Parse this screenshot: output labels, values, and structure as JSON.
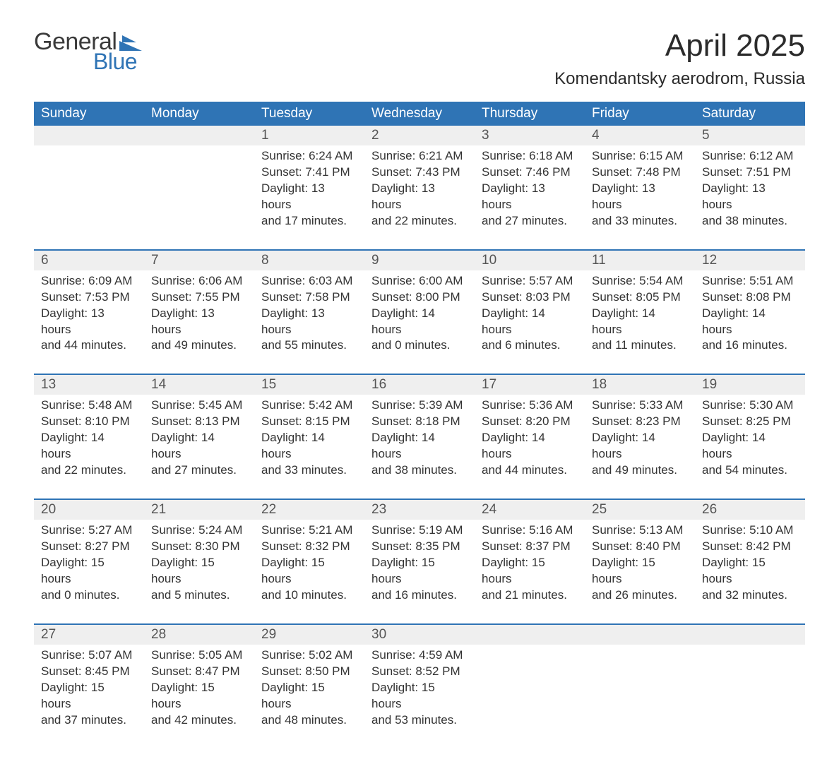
{
  "logo": {
    "general": "General",
    "blue": "Blue",
    "accent_color": "#2f74b5"
  },
  "title": "April 2025",
  "location": "Komendantsky aerodrom, Russia",
  "weekdays": [
    "Sunday",
    "Monday",
    "Tuesday",
    "Wednesday",
    "Thursday",
    "Friday",
    "Saturday"
  ],
  "colors": {
    "header_bg": "#2f74b5",
    "header_text": "#ffffff",
    "daynum_bg": "#efefef",
    "row_divider": "#2f74b5",
    "text": "#333333",
    "background": "#ffffff"
  },
  "typography": {
    "title_fontsize": 44,
    "location_fontsize": 24,
    "weekday_fontsize": 19,
    "daynum_fontsize": 19,
    "body_fontsize": 17,
    "font_family": "Arial"
  },
  "weeks": [
    [
      null,
      null,
      {
        "day": "1",
        "sunrise": "Sunrise: 6:24 AM",
        "sunset": "Sunset: 7:41 PM",
        "daylight1": "Daylight: 13 hours",
        "daylight2": "and 17 minutes."
      },
      {
        "day": "2",
        "sunrise": "Sunrise: 6:21 AM",
        "sunset": "Sunset: 7:43 PM",
        "daylight1": "Daylight: 13 hours",
        "daylight2": "and 22 minutes."
      },
      {
        "day": "3",
        "sunrise": "Sunrise: 6:18 AM",
        "sunset": "Sunset: 7:46 PM",
        "daylight1": "Daylight: 13 hours",
        "daylight2": "and 27 minutes."
      },
      {
        "day": "4",
        "sunrise": "Sunrise: 6:15 AM",
        "sunset": "Sunset: 7:48 PM",
        "daylight1": "Daylight: 13 hours",
        "daylight2": "and 33 minutes."
      },
      {
        "day": "5",
        "sunrise": "Sunrise: 6:12 AM",
        "sunset": "Sunset: 7:51 PM",
        "daylight1": "Daylight: 13 hours",
        "daylight2": "and 38 minutes."
      }
    ],
    [
      {
        "day": "6",
        "sunrise": "Sunrise: 6:09 AM",
        "sunset": "Sunset: 7:53 PM",
        "daylight1": "Daylight: 13 hours",
        "daylight2": "and 44 minutes."
      },
      {
        "day": "7",
        "sunrise": "Sunrise: 6:06 AM",
        "sunset": "Sunset: 7:55 PM",
        "daylight1": "Daylight: 13 hours",
        "daylight2": "and 49 minutes."
      },
      {
        "day": "8",
        "sunrise": "Sunrise: 6:03 AM",
        "sunset": "Sunset: 7:58 PM",
        "daylight1": "Daylight: 13 hours",
        "daylight2": "and 55 minutes."
      },
      {
        "day": "9",
        "sunrise": "Sunrise: 6:00 AM",
        "sunset": "Sunset: 8:00 PM",
        "daylight1": "Daylight: 14 hours",
        "daylight2": "and 0 minutes."
      },
      {
        "day": "10",
        "sunrise": "Sunrise: 5:57 AM",
        "sunset": "Sunset: 8:03 PM",
        "daylight1": "Daylight: 14 hours",
        "daylight2": "and 6 minutes."
      },
      {
        "day": "11",
        "sunrise": "Sunrise: 5:54 AM",
        "sunset": "Sunset: 8:05 PM",
        "daylight1": "Daylight: 14 hours",
        "daylight2": "and 11 minutes."
      },
      {
        "day": "12",
        "sunrise": "Sunrise: 5:51 AM",
        "sunset": "Sunset: 8:08 PM",
        "daylight1": "Daylight: 14 hours",
        "daylight2": "and 16 minutes."
      }
    ],
    [
      {
        "day": "13",
        "sunrise": "Sunrise: 5:48 AM",
        "sunset": "Sunset: 8:10 PM",
        "daylight1": "Daylight: 14 hours",
        "daylight2": "and 22 minutes."
      },
      {
        "day": "14",
        "sunrise": "Sunrise: 5:45 AM",
        "sunset": "Sunset: 8:13 PM",
        "daylight1": "Daylight: 14 hours",
        "daylight2": "and 27 minutes."
      },
      {
        "day": "15",
        "sunrise": "Sunrise: 5:42 AM",
        "sunset": "Sunset: 8:15 PM",
        "daylight1": "Daylight: 14 hours",
        "daylight2": "and 33 minutes."
      },
      {
        "day": "16",
        "sunrise": "Sunrise: 5:39 AM",
        "sunset": "Sunset: 8:18 PM",
        "daylight1": "Daylight: 14 hours",
        "daylight2": "and 38 minutes."
      },
      {
        "day": "17",
        "sunrise": "Sunrise: 5:36 AM",
        "sunset": "Sunset: 8:20 PM",
        "daylight1": "Daylight: 14 hours",
        "daylight2": "and 44 minutes."
      },
      {
        "day": "18",
        "sunrise": "Sunrise: 5:33 AM",
        "sunset": "Sunset: 8:23 PM",
        "daylight1": "Daylight: 14 hours",
        "daylight2": "and 49 minutes."
      },
      {
        "day": "19",
        "sunrise": "Sunrise: 5:30 AM",
        "sunset": "Sunset: 8:25 PM",
        "daylight1": "Daylight: 14 hours",
        "daylight2": "and 54 minutes."
      }
    ],
    [
      {
        "day": "20",
        "sunrise": "Sunrise: 5:27 AM",
        "sunset": "Sunset: 8:27 PM",
        "daylight1": "Daylight: 15 hours",
        "daylight2": "and 0 minutes."
      },
      {
        "day": "21",
        "sunrise": "Sunrise: 5:24 AM",
        "sunset": "Sunset: 8:30 PM",
        "daylight1": "Daylight: 15 hours",
        "daylight2": "and 5 minutes."
      },
      {
        "day": "22",
        "sunrise": "Sunrise: 5:21 AM",
        "sunset": "Sunset: 8:32 PM",
        "daylight1": "Daylight: 15 hours",
        "daylight2": "and 10 minutes."
      },
      {
        "day": "23",
        "sunrise": "Sunrise: 5:19 AM",
        "sunset": "Sunset: 8:35 PM",
        "daylight1": "Daylight: 15 hours",
        "daylight2": "and 16 minutes."
      },
      {
        "day": "24",
        "sunrise": "Sunrise: 5:16 AM",
        "sunset": "Sunset: 8:37 PM",
        "daylight1": "Daylight: 15 hours",
        "daylight2": "and 21 minutes."
      },
      {
        "day": "25",
        "sunrise": "Sunrise: 5:13 AM",
        "sunset": "Sunset: 8:40 PM",
        "daylight1": "Daylight: 15 hours",
        "daylight2": "and 26 minutes."
      },
      {
        "day": "26",
        "sunrise": "Sunrise: 5:10 AM",
        "sunset": "Sunset: 8:42 PM",
        "daylight1": "Daylight: 15 hours",
        "daylight2": "and 32 minutes."
      }
    ],
    [
      {
        "day": "27",
        "sunrise": "Sunrise: 5:07 AM",
        "sunset": "Sunset: 8:45 PM",
        "daylight1": "Daylight: 15 hours",
        "daylight2": "and 37 minutes."
      },
      {
        "day": "28",
        "sunrise": "Sunrise: 5:05 AM",
        "sunset": "Sunset: 8:47 PM",
        "daylight1": "Daylight: 15 hours",
        "daylight2": "and 42 minutes."
      },
      {
        "day": "29",
        "sunrise": "Sunrise: 5:02 AM",
        "sunset": "Sunset: 8:50 PM",
        "daylight1": "Daylight: 15 hours",
        "daylight2": "and 48 minutes."
      },
      {
        "day": "30",
        "sunrise": "Sunrise: 4:59 AM",
        "sunset": "Sunset: 8:52 PM",
        "daylight1": "Daylight: 15 hours",
        "daylight2": "and 53 minutes."
      },
      null,
      null,
      null
    ]
  ]
}
